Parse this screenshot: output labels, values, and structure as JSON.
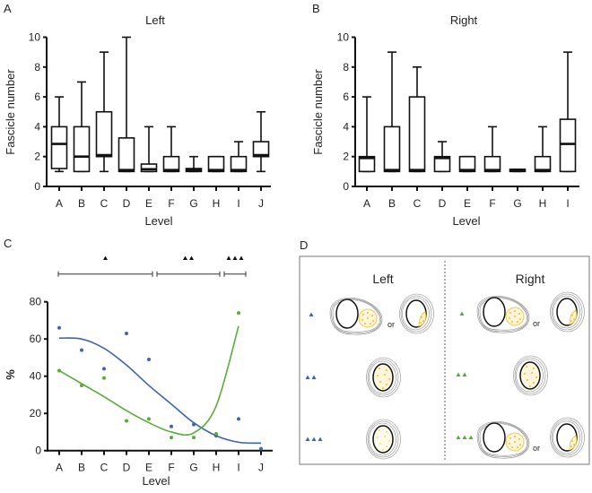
{
  "colors": {
    "left": "#3f63ad",
    "right": "#5aab3a",
    "fascicle": "#f0c744",
    "ink": "#111111"
  },
  "panel_labels": [
    "A",
    "B",
    "C",
    "D"
  ],
  "chart_data": [
    {
      "type": "boxplot",
      "title": "Left",
      "xlabel": "Level",
      "ylabel": "Fascicle number",
      "ylim": [
        0,
        10
      ],
      "yticks": [
        0,
        2,
        4,
        6,
        8,
        10
      ],
      "categories": [
        "A",
        "B",
        "C",
        "D",
        "E",
        "F",
        "G",
        "H",
        "I",
        "J"
      ],
      "boxes": [
        {
          "min": 1,
          "q1": 1.2,
          "median": 2.85,
          "q3": 4,
          "max": 6
        },
        {
          "min": 1,
          "q1": 1,
          "median": 2,
          "q3": 4,
          "max": 7
        },
        {
          "min": 1,
          "q1": 2,
          "median": 2.1,
          "q3": 5,
          "max": 9
        },
        {
          "min": 1,
          "q1": 1,
          "median": 1.1,
          "q3": 3.25,
          "max": 10
        },
        {
          "min": 1,
          "q1": 1,
          "median": 1.15,
          "q3": 1.5,
          "max": 4
        },
        {
          "min": 1,
          "q1": 1,
          "median": 1.1,
          "q3": 2,
          "max": 4
        },
        {
          "min": 1,
          "q1": 1,
          "median": 1.1,
          "q3": 1.2,
          "max": 2
        },
        {
          "min": 1,
          "q1": 1,
          "median": 1.1,
          "q3": 2,
          "max": 2
        },
        {
          "min": 1,
          "q1": 1,
          "median": 1.1,
          "q3": 2,
          "max": 3
        },
        {
          "min": 1,
          "q1": 2,
          "median": 2.1,
          "q3": 3,
          "max": 5
        }
      ]
    },
    {
      "type": "boxplot",
      "title": "Right",
      "xlabel": "Level",
      "ylabel": "Fascicle number",
      "ylim": [
        0,
        10
      ],
      "yticks": [
        0,
        2,
        4,
        6,
        8,
        10
      ],
      "categories": [
        "A",
        "B",
        "C",
        "D",
        "E",
        "F",
        "G",
        "H",
        "I"
      ],
      "boxes": [
        {
          "min": 1,
          "q1": 1,
          "median": 1.9,
          "q3": 2,
          "max": 6
        },
        {
          "min": 1,
          "q1": 1,
          "median": 1.1,
          "q3": 4,
          "max": 9
        },
        {
          "min": 1,
          "q1": 1,
          "median": 1.1,
          "q3": 6,
          "max": 8
        },
        {
          "min": 1,
          "q1": 1,
          "median": 1.9,
          "q3": 2,
          "max": 3
        },
        {
          "min": 1,
          "q1": 1,
          "median": 1.1,
          "q3": 2,
          "max": 2
        },
        {
          "min": 1,
          "q1": 1,
          "median": 1.1,
          "q3": 2,
          "max": 4
        },
        {
          "min": 1,
          "q1": 1,
          "median": 1.05,
          "q3": 1.15,
          "max": 1.15
        },
        {
          "min": 1,
          "q1": 1,
          "median": 1.1,
          "q3": 2,
          "max": 4
        },
        {
          "min": 1,
          "q1": 1,
          "median": 2.85,
          "q3": 4.5,
          "max": 9
        }
      ]
    },
    {
      "type": "scatter",
      "xlabel": "Level",
      "ylabel": "%",
      "ylim": [
        0,
        80
      ],
      "yticks": [
        0,
        20,
        40,
        60,
        80
      ],
      "categories": [
        "A",
        "B",
        "C",
        "D",
        "E",
        "F",
        "G",
        "H",
        "I",
        "J"
      ],
      "series": [
        {
          "color": "#3f63ad",
          "points": [
            66,
            54,
            44,
            63,
            49,
            13,
            14,
            8,
            17,
            1
          ],
          "fit": [
            60.5,
            60,
            55,
            46,
            35,
            25,
            15,
            8,
            4.5,
            4
          ]
        },
        {
          "color": "#5aab3a",
          "points": [
            43,
            35,
            39,
            16,
            17,
            7,
            7,
            9,
            74,
            null
          ],
          "fit": [
            43,
            36,
            29,
            21.5,
            15,
            10,
            9.5,
            24,
            67,
            null
          ]
        }
      ],
      "significance_groups": [
        {
          "from": "A",
          "to": "E",
          "marker_count": 1
        },
        {
          "from": "F",
          "to": "H",
          "marker_count": 2
        },
        {
          "from": "H",
          "to": "I",
          "marker_count": 3
        }
      ]
    }
  ],
  "diagram": {
    "left_title": "Left",
    "right_title": "Right",
    "or_label": "or"
  }
}
